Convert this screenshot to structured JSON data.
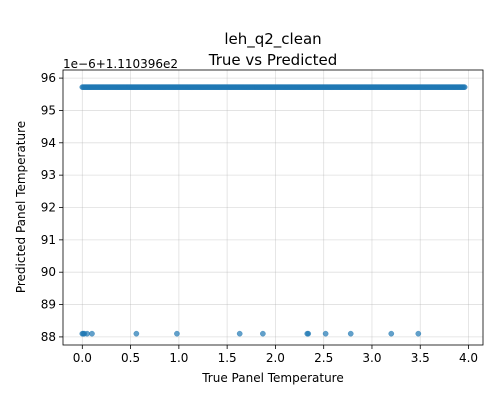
{
  "chart_data": {
    "type": "scatter",
    "title_line1": "leh_q2_clean",
    "title_line2": "True vs Predicted",
    "xlabel": "True Panel Temperature",
    "ylabel": "Predicted Panel Temperature",
    "y_offset_label": "1e−6+1.110396e2",
    "xlim": [
      -0.2,
      4.15
    ],
    "ylim": [
      87.75,
      96.25
    ],
    "x_ticks": [
      0.0,
      0.5,
      1.0,
      1.5,
      2.0,
      2.5,
      3.0,
      3.5,
      4.0
    ],
    "x_tick_labels": [
      "0.0",
      "0.5",
      "1.0",
      "1.5",
      "2.0",
      "2.5",
      "3.0",
      "3.5",
      "4.0"
    ],
    "y_ticks": [
      88,
      89,
      90,
      91,
      92,
      93,
      94,
      95,
      96
    ],
    "y_tick_labels": [
      "88",
      "89",
      "90",
      "91",
      "92",
      "93",
      "94",
      "95",
      "96"
    ],
    "grid": true,
    "marker_color": "#1f77b4",
    "marker_alpha": 0.7,
    "series": [
      {
        "x_range": [
          0.0,
          3.96
        ],
        "x_step": 0.01,
        "y": 95.72
      },
      {
        "x": [
          0.0,
          0.01,
          0.02,
          0.05,
          0.1,
          0.56,
          0.98,
          1.63,
          1.87,
          2.33,
          2.34,
          2.52,
          2.78,
          3.2,
          3.48
        ],
        "y": 88.1
      }
    ]
  }
}
